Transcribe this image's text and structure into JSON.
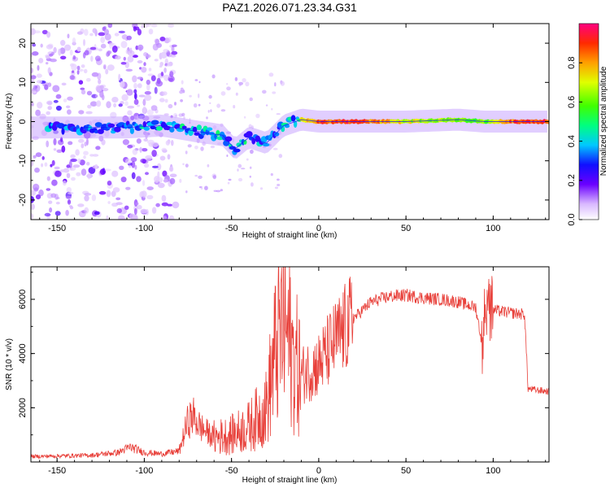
{
  "title": "PAZ1.2026.071.23.34.G31",
  "chart_data": [
    {
      "type": "heatmap",
      "xlabel": "Height of straight line (km)",
      "ylabel": "Frequency (Hz)",
      "xlim": [
        -165,
        132
      ],
      "ylim": [
        -25,
        25
      ],
      "xticks": [
        -150,
        -100,
        -50,
        0,
        50,
        100
      ],
      "xtick_labels": [
        "-150",
        "-100",
        "-50",
        "0",
        "50",
        "100"
      ],
      "yticks": [
        -20,
        -10,
        0,
        10,
        20
      ],
      "ytick_labels": [
        "-20",
        "-10",
        "0",
        "10",
        "20"
      ],
      "colorbar": {
        "label": "Normalized spectral amplitude",
        "range": [
          0,
          1
        ],
        "ticks": [
          0,
          0.2,
          0.4,
          0.6,
          0.8
        ],
        "tick_labels": [
          "0.0",
          "0.2",
          "0.4",
          "0.6",
          "0.8"
        ]
      },
      "trace": [
        {
          "x": -130,
          "f": -1.5,
          "amp": 0.35
        },
        {
          "x": -110,
          "f": -1.5,
          "amp": 0.4
        },
        {
          "x": -90,
          "f": -1.0,
          "amp": 0.35
        },
        {
          "x": -70,
          "f": -2.5,
          "amp": 0.45
        },
        {
          "x": -55,
          "f": -3.5,
          "amp": 0.4
        },
        {
          "x": -48,
          "f": -7.0,
          "amp": 0.4
        },
        {
          "x": -40,
          "f": -4.0,
          "amp": 0.45
        },
        {
          "x": -30,
          "f": -5.5,
          "amp": 0.35
        },
        {
          "x": -20,
          "f": -1.0,
          "amp": 0.5
        },
        {
          "x": -10,
          "f": 0.5,
          "amp": 0.7
        },
        {
          "x": 0,
          "f": 0.0,
          "amp": 0.85
        },
        {
          "x": 20,
          "f": 0.0,
          "amp": 0.9
        },
        {
          "x": 50,
          "f": 0.0,
          "amp": 0.7
        },
        {
          "x": 80,
          "f": 0.5,
          "amp": 0.6
        },
        {
          "x": 95,
          "f": 0.0,
          "amp": 0.6
        },
        {
          "x": 110,
          "f": 0.0,
          "amp": 0.85
        },
        {
          "x": 130,
          "f": 0.0,
          "amp": 0.9
        }
      ]
    },
    {
      "type": "line",
      "xlabel": "Height of straight line (km)",
      "ylabel": "SNR (10 * v/v)",
      "xlim": [
        -165,
        132
      ],
      "ylim": [
        0,
        7200
      ],
      "xticks": [
        -150,
        -100,
        -50,
        0,
        50,
        100
      ],
      "xtick_labels": [
        "-150",
        "-100",
        "-50",
        "0",
        "50",
        "100"
      ],
      "yticks": [
        2000,
        4000,
        6000
      ],
      "ytick_labels": [
        "2000",
        "4000",
        "6000"
      ],
      "color": "#e8403a",
      "series": [
        {
          "name": "SNR",
          "x": [
            -165,
            -150,
            -130,
            -115,
            -108,
            -100,
            -90,
            -80,
            -75,
            -72,
            -68,
            -60,
            -50,
            -40,
            -30,
            -25,
            -20,
            -15,
            -10,
            0,
            10,
            20,
            30,
            40,
            50,
            60,
            70,
            80,
            90,
            94,
            96,
            98,
            100,
            110,
            118,
            120,
            125,
            132
          ],
          "y": [
            200,
            220,
            250,
            350,
            550,
            350,
            300,
            400,
            1500,
            1700,
            1300,
            900,
            1000,
            1300,
            2000,
            4000,
            5200,
            3900,
            3200,
            3600,
            4500,
            5300,
            5900,
            6100,
            6150,
            6050,
            6000,
            5900,
            5700,
            4200,
            6300,
            5500,
            5600,
            5500,
            5450,
            2700,
            2650,
            2600
          ]
        }
      ]
    }
  ]
}
